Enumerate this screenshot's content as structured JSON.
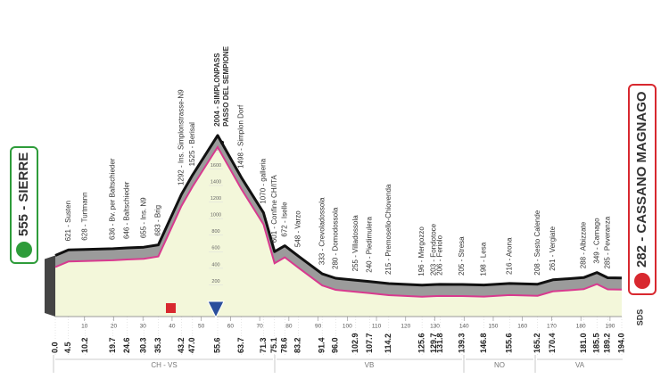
{
  "chart_data": {
    "type": "profile",
    "x": [
      0.0,
      4.5,
      10.2,
      19.7,
      24.6,
      30.3,
      35.3,
      43.2,
      47.0,
      55.6,
      63.7,
      71.3,
      75.1,
      78.6,
      83.2,
      91.4,
      96.0,
      102.9,
      107.7,
      114.2,
      125.6,
      129.7,
      131.8,
      139.3,
      146.8,
      155.6,
      165.2,
      170.4,
      181.0,
      185.5,
      189.2,
      194.0
    ],
    "x_labels": [
      "0.0",
      "4.5",
      "10.2",
      "19.7",
      "24.6",
      "30.3",
      "35.3",
      "43.2",
      "47.0",
      "55.6",
      "63.7",
      "71.3",
      "75.1",
      "78.6",
      "83.2",
      "91.4",
      "96.0",
      "102.9",
      "107.7",
      "114.2",
      "125.6",
      "129.7",
      "131.8",
      "139.3",
      "146.8",
      "155.6",
      "165.2",
      "170.4",
      "181.0",
      "185.5",
      "189.2",
      "194.0"
    ],
    "values": [
      555,
      621,
      628,
      636,
      646,
      655,
      683,
      1292,
      1525,
      2004,
      1498,
      1070,
      601,
      672,
      548,
      333,
      280,
      255,
      240,
      215,
      196,
      203,
      206,
      205,
      198,
      216,
      208,
      261,
      288,
      349,
      285,
      282
    ],
    "value_labels": [
      "555 - SIERRE",
      "621 - Susten",
      "628 - Turtmann",
      "636 - Bv. per Baltschieder",
      "646 - Baltschieder",
      "655 - Ins. N9",
      "683 - Brig",
      "1292 - Ins. Simplonstrasse-N9",
      "1525 - Berisal",
      "2004 - SIMPLONPASS",
      "1498 - Simplon Dorf",
      "1070 - galleria",
      "601 - Confine CH/ITA",
      "672 - Iselle",
      "548 - Varzo",
      "333 - Crevoladossola",
      "280 - Domodossola",
      "255 - Villadossola",
      "240 - Piedimulera",
      "215 - Premosello-Chiovenda",
      "196 - Mergozzo",
      "203 - Fondotoce",
      "206 - Feriolo",
      "205 - Stresa",
      "198 - Lesa",
      "216 - Arona",
      "208 - Sesto Calende",
      "261 - Vergiate",
      "288 - Albizzate",
      "349 - Carnago",
      "285 - Peveranza",
      "282 - CASSANO MAGNAGO"
    ],
    "summit_label_2": "PASSO DEL SEMPIONE",
    "xlim": [
      0,
      194
    ],
    "xticks": [
      10,
      20,
      30,
      40,
      50,
      60,
      70,
      80,
      90,
      100,
      110,
      120,
      130,
      140,
      150,
      160,
      170,
      180,
      190
    ],
    "ylim": [
      0,
      2100
    ],
    "yticks": [
      200,
      400,
      600,
      800,
      1000,
      1200,
      1400,
      1600,
      1800
    ],
    "regions": [
      "CH - VS",
      "VB",
      "NO",
      "VA"
    ],
    "logo": "SDS"
  }
}
